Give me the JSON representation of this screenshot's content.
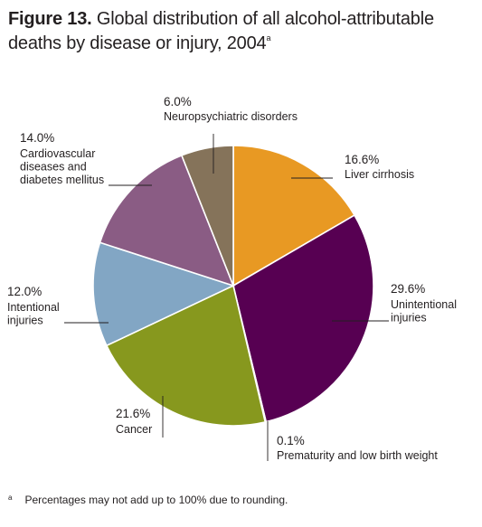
{
  "title": {
    "figure": "Figure 13.",
    "text": "Global distribution of all alcohol-attributable deaths by disease or injury, 2004",
    "sup": "a"
  },
  "footnote": {
    "mark": "a",
    "text": "Percentages may not add up to 100% due to rounding."
  },
  "chart_data": {
    "type": "pie",
    "title": "Global distribution of all alcohol-attributable deaths by disease or injury, 2004",
    "slices": [
      {
        "label": "Liver cirrhosis",
        "value": 16.6,
        "pct_label": "16.6%",
        "color": "#e89923"
      },
      {
        "label": "Unintentional injuries",
        "value": 29.6,
        "pct_label": "29.6%",
        "color": "#570052"
      },
      {
        "label": "Prematurity and low birth weight",
        "value": 0.1,
        "pct_label": "0.1%",
        "color": "#999a96"
      },
      {
        "label": "Cancer",
        "value": 21.6,
        "pct_label": "21.6%",
        "color": "#87981e"
      },
      {
        "label": "Intentional injuries",
        "value": 12.0,
        "pct_label": "12.0%",
        "color": "#82a6c4"
      },
      {
        "label": "Cardiovascular diseases and diabetes mellitus",
        "value": 14.0,
        "pct_label": "14.0%",
        "color": "#8a5c84"
      },
      {
        "label": "Neuropsychiatric disorders",
        "value": 6.0,
        "pct_label": "6.0%",
        "color": "#85735a"
      }
    ]
  }
}
